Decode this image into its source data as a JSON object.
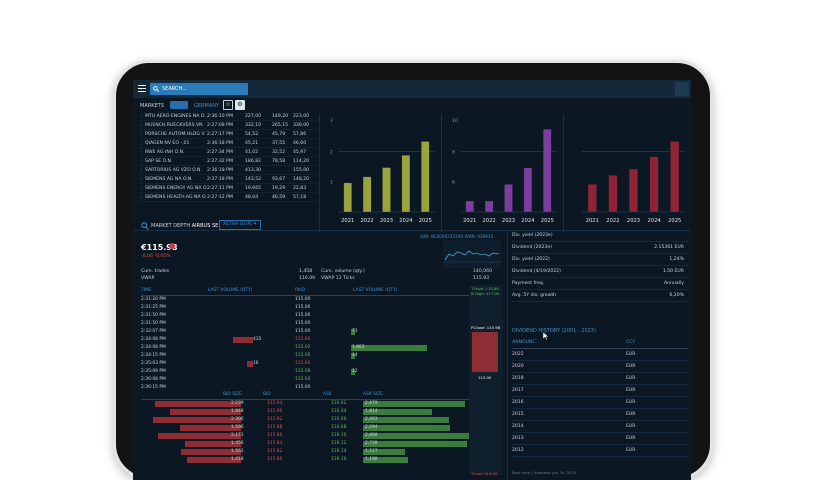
{
  "header": {
    "search_placeholder": "SEARCH..."
  },
  "markets": {
    "title": "MARKETS",
    "country": "GERMANY"
  },
  "stocks": [
    {
      "name": "MTU AERO ENGINES NA O.",
      "time": "2:36:10 PM",
      "price": "227,00",
      "bid": "149,20",
      "ask": "223,00"
    },
    {
      "name": "MUENCH.RUECKVERS.VN",
      "time": "2:27:08 PM",
      "price": "332,10",
      "bid": "265,15",
      "ask": "336,00"
    },
    {
      "name": "PORSCHE AUTOM.HLDG V",
      "time": "2:27:17 PM",
      "price": "54,52",
      "bid": "45,79",
      "ask": "57,86"
    },
    {
      "name": "QIAGEN NV EO -,01",
      "time": "2:36:18 PM",
      "price": "45,21",
      "bid": "37,55",
      "ask": "46,60"
    },
    {
      "name": "RWE AG INH O.N.",
      "time": "2:27:34 PM",
      "price": "41,02",
      "bid": "32,52",
      "ask": "45,97"
    },
    {
      "name": "SAP SE O.N.",
      "time": "2:27:32 PM",
      "price": "186,82",
      "bid": "78,58",
      "ask": "114,20"
    },
    {
      "name": "SARTORIUS AG VZO O.N.",
      "time": "2:36:18 PM",
      "price": "413,30",
      "bid": "",
      "ask": "155,00"
    },
    {
      "name": "SIEMENS AG NA O.N.",
      "time": "2:37:18 PM",
      "price": "143,52",
      "bid": "93,67",
      "ask": "148,20"
    },
    {
      "name": "SIEMENS ENERGY AG NA O",
      "time": "2:27:11 PM",
      "price": "19,665",
      "bid": "19,29",
      "ask": "22,83"
    },
    {
      "name": "SIEMENS HEALTH.AG NA O",
      "time": "2:27:12 PM",
      "price": "48,04",
      "bid": "46,59",
      "ask": "57,18"
    }
  ],
  "charts": [
    {
      "ymarks": [
        "3",
        "2",
        "1"
      ],
      "categories": [
        "2021",
        "2022",
        "2023",
        "2024",
        "2025"
      ],
      "values": [
        0.95,
        1.15,
        1.45,
        1.85,
        2.3
      ],
      "color": "#9aa33c"
    },
    {
      "ymarks": [
        "10",
        "8",
        "6"
      ],
      "categories": [
        "2021",
        "2022",
        "2023",
        "2024",
        "2025"
      ],
      "values": [
        5.6,
        5.6,
        6.5,
        7.4,
        9.5
      ],
      "color": "#7a3f9e"
    },
    {
      "ymarks": [
        "",
        "",
        ""
      ],
      "categories": [
        "2021",
        "2022",
        "2023",
        "2024",
        "2025"
      ],
      "values": [
        0.9,
        1.2,
        1.4,
        1.8,
        2.3
      ],
      "color": "#8e2438"
    }
  ],
  "depth": {
    "title": "MARKET DEPTH",
    "instrument": "AIRBUS SE",
    "exchange": "XETRA (EUR)",
    "price": "€115.98",
    "change": "-0,06  -0,05%",
    "isin": "ISIN: NL0000235190   WKN: 938914",
    "cum_trades_label": "Cum. trades",
    "cum_trades": "1,458",
    "vwap_label": "VWAP",
    "vwap": "116.09",
    "cum_volume_label": "Cum. volume (qty.)",
    "cum_volume": "140,060",
    "vwap12_label": "VWAP 12 Ticks",
    "vwap12": "115.93"
  },
  "trades_headers": [
    "TIME",
    "LAST VOLUME (QTY)",
    "PAID",
    "LAST VOLUME (QTY)"
  ],
  "trades": [
    {
      "time": "2:31:20 PM",
      "paid": "115.00",
      "left": "",
      "right": "",
      "paidColor": "#c9d3dc"
    },
    {
      "time": "2:31:25 PM",
      "paid": "115.06",
      "left": "",
      "right": "",
      "paidColor": "#c9d3dc"
    },
    {
      "time": "2:31:50 PM",
      "paid": "115.06",
      "left": "",
      "right": "",
      "paidColor": "#c9d3dc"
    },
    {
      "time": "2:31:50 PM",
      "paid": "115.00",
      "left": "",
      "right": "",
      "paidColor": "#c9d3dc"
    },
    {
      "time": "2:32:07 PM",
      "paid": "115.00",
      "left": "",
      "right": "73",
      "paidColor": "#c9d3dc"
    },
    {
      "time": "2:34:08 PM",
      "paid": "115.00",
      "left": "435",
      "right": "",
      "paidColor": "#e05050"
    },
    {
      "time": "2:34:08 PM",
      "paid": "115.02",
      "left": "",
      "right": "1,862",
      "paidColor": "#5bbf5b"
    },
    {
      "time": "2:34:15 PM",
      "paid": "115.06",
      "left": "",
      "right": "14",
      "paidColor": "#5bbf5b"
    },
    {
      "time": "2:35:03 PM",
      "paid": "115.00",
      "left": "16",
      "right": "",
      "paidColor": "#e05050"
    },
    {
      "time": "2:35:09 PM",
      "paid": "115.08",
      "left": "",
      "right": "12",
      "paidColor": "#5bbf5b"
    },
    {
      "time": "2:36:08 PM",
      "paid": "115.04",
      "left": "",
      "right": "",
      "paidColor": "#5bbf5b"
    },
    {
      "time": "2:36:15 PM",
      "paid": "115.00",
      "left": "",
      "right": "",
      "paidColor": "#c9d3dc"
    }
  ],
  "book_headers": [
    "BID SIZE",
    "BID",
    "ASK",
    "ASK SIZE"
  ],
  "book": [
    {
      "bidsize": "2,239",
      "bid": "115.94",
      "ask": "116.02",
      "asksize": "2,679"
    },
    {
      "bidsize": "1,848",
      "bid": "115.90",
      "ask": "116.04",
      "asksize": "1,814"
    },
    {
      "bidsize": "2,306",
      "bid": "115.92",
      "ask": "116.06",
      "asksize": "2,263"
    },
    {
      "bidsize": "1,596",
      "bid": "115.88",
      "ask": "116.08",
      "asksize": "2,294"
    },
    {
      "bidsize": "2,173",
      "bid": "115.86",
      "ask": "116.10",
      "asksize": "2,868"
    },
    {
      "bidsize": "1,456",
      "bid": "115.84",
      "ask": "116.12",
      "asksize": "2,738"
    },
    {
      "bidsize": "1,562",
      "bid": "115.82",
      "ask": "116.14",
      "asksize": "1,117"
    },
    {
      "bidsize": "1,418",
      "bid": "115.80",
      "ask": "116.16",
      "asksize": "1,198"
    }
  ],
  "side": {
    "high": "T-High: 115,88",
    "high2": "B-High: 117,00",
    "close": "P.Close: 115.98",
    "mid": "115.00",
    "low": "T-Low: 114,00"
  },
  "dividends": {
    "rows": [
      {
        "label": "Div. yield (2023e)",
        "value": ""
      },
      {
        "label": "Dividend (2023e)",
        "value": "2.15361 EUR"
      },
      {
        "label": "Div. yield (2022)",
        "value": "1,24%"
      },
      {
        "label": "Dividend (4/19/2022)",
        "value": "1,50 EUR"
      },
      {
        "label": "Payment freq.",
        "value": "Annually"
      },
      {
        "label": "Avg. 5Y div. growth",
        "value": "6,20%"
      }
    ],
    "history_title": "DIVIDEND HISTORY (2001 - 2023)",
    "history_headers": [
      "ANNOUNC.",
      "CCY"
    ],
    "history": [
      {
        "year": "2022",
        "ccy": "EUR"
      },
      {
        "year": "2020",
        "ccy": "EUR"
      },
      {
        "year": "2018",
        "ccy": "EUR"
      },
      {
        "year": "2017",
        "ccy": "EUR"
      },
      {
        "year": "2016",
        "ccy": "EUR"
      },
      {
        "year": "2015",
        "ccy": "EUR"
      },
      {
        "year": "2014",
        "ccy": "EUR"
      },
      {
        "year": "2013",
        "ccy": "EUR"
      },
      {
        "year": "2012",
        "ccy": "EUR"
      }
    ],
    "footer": "Real time | Updated: Jan 30, 2023"
  }
}
